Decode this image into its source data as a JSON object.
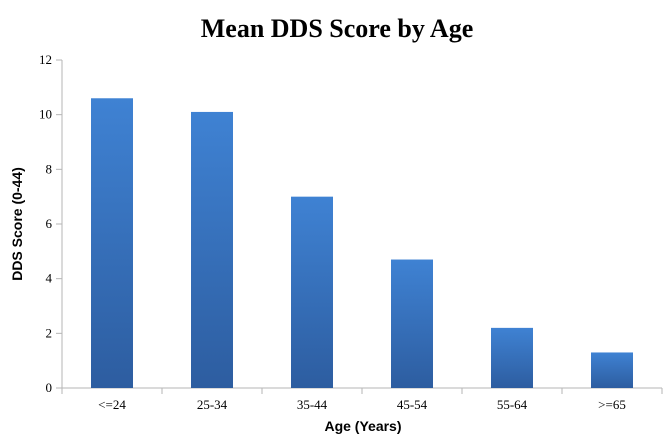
{
  "chart_data": {
    "type": "bar",
    "title": "Mean DDS Score by Age",
    "xlabel": "Age (Years)",
    "ylabel": "DDS Score (0-44)",
    "categories": [
      "<=24",
      "25-34",
      "35-44",
      "45-54",
      "55-64",
      ">=65"
    ],
    "values": [
      10.6,
      10.1,
      7.0,
      4.7,
      2.2,
      1.3
    ],
    "ylim": [
      0,
      12
    ],
    "yticks": [
      "0",
      "2",
      "4",
      "6",
      "8",
      "10",
      "12"
    ],
    "grid": false,
    "legend": "none",
    "bar_color_top": "#3f82d3",
    "bar_color_bottom": "#2d5da0"
  }
}
